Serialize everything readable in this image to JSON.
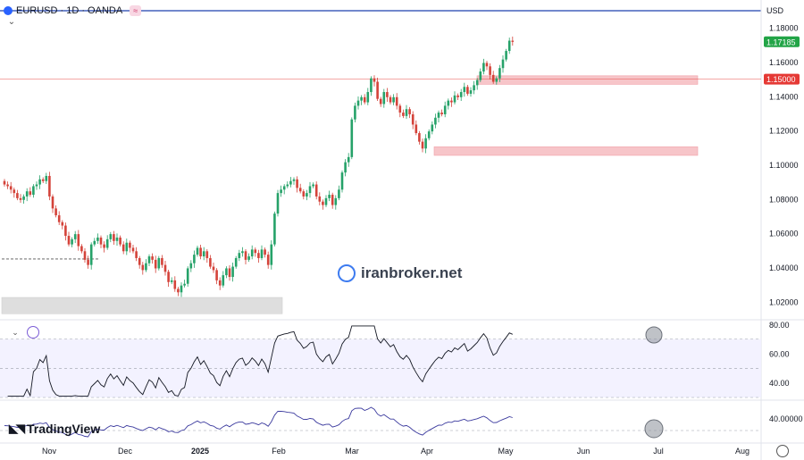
{
  "header": {
    "symbol": "EURUSD · 1D · OANDA",
    "currency": "USD",
    "badge": "≈"
  },
  "watermark": "iranbroker.net",
  "brand": "TradingView",
  "chart_data": [
    {
      "type": "candlestick",
      "title": "EURUSD · 1D · OANDA",
      "ylim": [
        1.01,
        1.19
      ],
      "yticks": [
        "1.18000",
        "1.16000",
        "1.14000",
        "1.12000",
        "1.10000",
        "1.08000",
        "1.06000",
        "1.04000",
        "1.02000"
      ],
      "xticks": [
        "Nov",
        "Dec",
        "2025",
        "Feb",
        "Mar",
        "Apr",
        "May",
        "Jun",
        "Jul",
        "Aug"
      ],
      "last_price": "1.17185",
      "horizontal_line": {
        "value": 1.15,
        "label": "1.15000",
        "color": "#e53935"
      },
      "zones": [
        {
          "name": "resistance-zone",
          "from": 1.147,
          "to": 1.152,
          "start": "Apr 21",
          "end": "Jul 20",
          "color": "#f7c5c9"
        },
        {
          "name": "support-zone",
          "from": 1.1055,
          "to": 1.1105,
          "start": "Mar 31",
          "end": "Jul 20",
          "color": "#f7c5c9"
        },
        {
          "name": "demand-zone",
          "from": 1.013,
          "to": 1.0225,
          "start": "Oct 1",
          "end": "Jan 31",
          "color": "#dedede"
        }
      ],
      "dashed_level": 1.045,
      "closes": [
        1.0885,
        1.0875,
        1.0855,
        1.0835,
        1.0805,
        1.0795,
        1.0815,
        1.0845,
        1.0825,
        1.0875,
        1.0885,
        1.0915,
        1.0905,
        1.0935,
        1.0815,
        1.0745,
        1.0705,
        1.0665,
        1.0645,
        1.0585,
        1.0535,
        1.0565,
        1.0595,
        1.0525,
        1.0495,
        1.0445,
        1.0415,
        1.0535,
        1.0555,
        1.0575,
        1.0535,
        1.0515,
        1.0565,
        1.0595,
        1.0555,
        1.0575,
        1.0535,
        1.0495,
        1.0545,
        1.0515,
        1.0495,
        1.0455,
        1.0415,
        1.0385,
        1.0425,
        1.0465,
        1.0445,
        1.0395,
        1.0455,
        1.0415,
        1.0375,
        1.0315,
        1.0325,
        1.0275,
        1.0255,
        1.0295,
        1.0305,
        1.0395,
        1.0425,
        1.0475,
        1.0515,
        1.0465,
        1.0495,
        1.0455,
        1.0405,
        1.0385,
        1.0325,
        1.0295,
        1.0355,
        1.0395,
        1.0345,
        1.0405,
        1.0455,
        1.0485,
        1.0495,
        1.0445,
        1.0465,
        1.0505,
        1.0485,
        1.0455,
        1.0505,
        1.0475,
        1.0415,
        1.0535,
        1.0715,
        1.0835,
        1.0855,
        1.0875,
        1.0885,
        1.0905,
        1.0915,
        1.0865,
        1.0845,
        1.0815,
        1.0835,
        1.0875,
        1.0885,
        1.0815,
        1.0785,
        1.0765,
        1.0805,
        1.0825,
        1.0765,
        1.0805,
        1.0855,
        1.0955,
        1.1015,
        1.1045,
        1.1265,
        1.1345,
        1.1375,
        1.1395,
        1.1365,
        1.1425,
        1.1505,
        1.1485,
        1.1385,
        1.1355,
        1.1425,
        1.1395,
        1.1365,
        1.1395,
        1.1345,
        1.1305,
        1.1285,
        1.1325,
        1.1295,
        1.1235,
        1.1185,
        1.1135,
        1.1095,
        1.1155,
        1.1195,
        1.1235,
        1.1275,
        1.1305,
        1.1295,
        1.1345,
        1.1375,
        1.1365,
        1.1405,
        1.1395,
        1.1425,
        1.1455,
        1.1415,
        1.1435,
        1.1465,
        1.1495,
        1.1545,
        1.1595,
        1.1575,
        1.1525,
        1.1485,
        1.1505,
        1.1565,
        1.1615,
        1.1665,
        1.1725,
        1.1718
      ],
      "rsi": {
        "ylim": [
          30,
          82
        ],
        "levels": [
          70,
          50,
          30
        ],
        "yticks": [
          "80.00",
          "60.00",
          "40.00"
        ]
      },
      "oscillator": {
        "ytick": "40.00000"
      }
    }
  ]
}
